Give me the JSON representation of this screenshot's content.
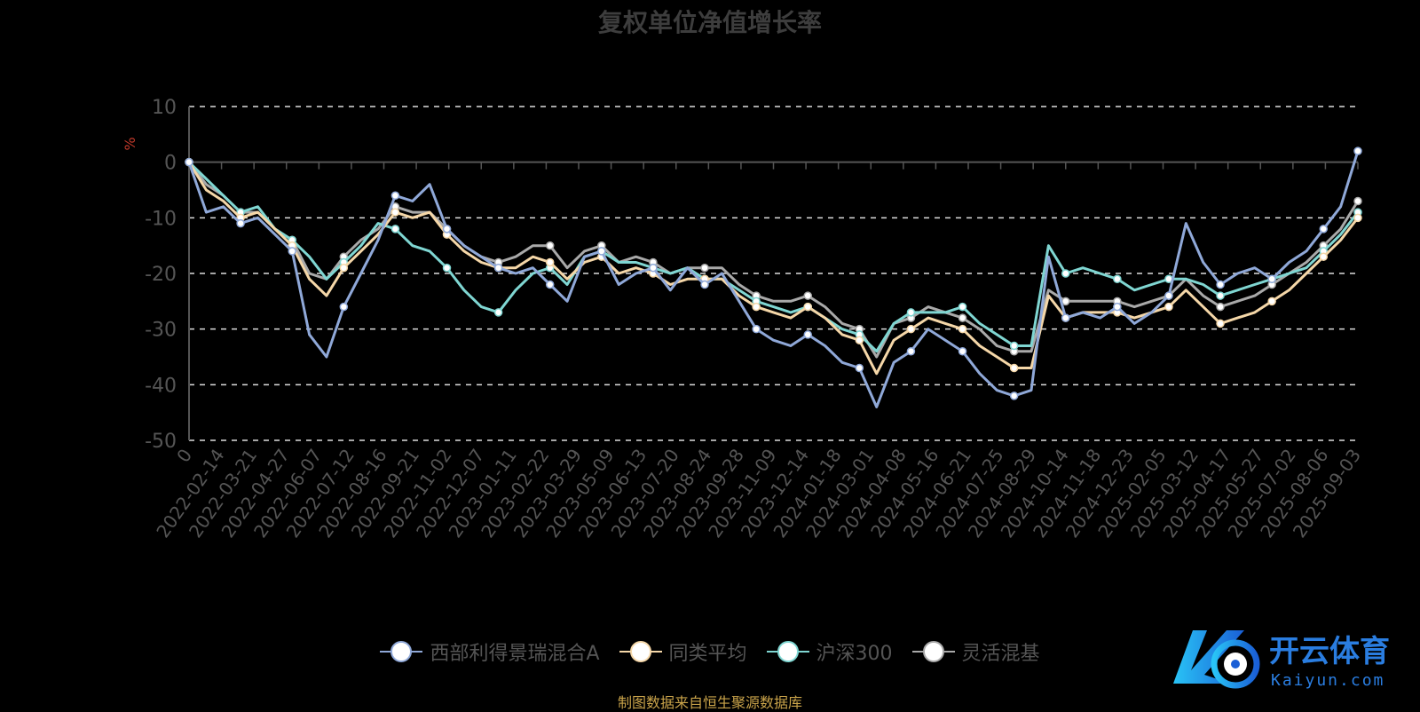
{
  "chart_data": {
    "type": "line",
    "title": "复权单位净值增长率",
    "ylabel": "%",
    "ylim": [
      -50,
      10
    ],
    "yticks": [
      10,
      0,
      -10,
      -20,
      -30,
      -40,
      -50
    ],
    "x_tick_labels": [
      "0",
      "2022-02-14",
      "2022-03-21",
      "2022-04-27",
      "2022-06-07",
      "2022-07-12",
      "2022-08-16",
      "2022-09-21",
      "2022-11-02",
      "2022-12-07",
      "2023-01-11",
      "2023-02-22",
      "2023-03-29",
      "2023-05-09",
      "2023-06-13",
      "2023-07-20",
      "2023-08-24",
      "2023-09-28",
      "2023-11-09",
      "2023-12-14",
      "2024-01-18",
      "2024-03-01",
      "2024-04-08",
      "2024-05-16",
      "2024-06-21",
      "2024-07-25",
      "2024-08-29",
      "2024-10-14",
      "2024-11-18",
      "2024-12-23",
      "2025-02-05",
      "2025-03-12",
      "2025-04-17",
      "2025-05-27",
      "2025-07-02",
      "2025-08-06",
      "2025-09-03"
    ],
    "grid": "dashed-horizontal",
    "legend_position": "bottom",
    "series": [
      {
        "name": "西部利得景瑞混合A",
        "color": "#8fa8d8",
        "values": [
          0,
          -9,
          -8,
          -11,
          -10,
          -13,
          -16,
          -31,
          -35,
          -26,
          -20,
          -14,
          -6,
          -7,
          -4,
          -12,
          -15,
          -17,
          -19,
          -20,
          -19,
          -22,
          -25,
          -17,
          -16,
          -22,
          -20,
          -19,
          -23,
          -19,
          -22,
          -20,
          -25,
          -30,
          -32,
          -33,
          -31,
          -33,
          -36,
          -37,
          -44,
          -36,
          -34,
          -30,
          -32,
          -34,
          -38,
          -41,
          -42,
          -41,
          -17,
          -28,
          -27,
          -28,
          -26,
          -29,
          -27,
          -24,
          -11,
          -18,
          -22,
          -20,
          -19,
          -21,
          -18,
          -16,
          -12,
          -8,
          2
        ]
      },
      {
        "name": "同类平均",
        "color": "#f5d7a8",
        "values": [
          0,
          -5,
          -7,
          -10,
          -9,
          -12,
          -15,
          -21,
          -24,
          -19,
          -16,
          -13,
          -9,
          -10,
          -9,
          -13,
          -16,
          -18,
          -19,
          -19,
          -17,
          -18,
          -21,
          -18,
          -17,
          -20,
          -19,
          -20,
          -22,
          -21,
          -21,
          -21,
          -24,
          -26,
          -27,
          -28,
          -26,
          -28,
          -31,
          -32,
          -38,
          -32,
          -30,
          -28,
          -29,
          -30,
          -33,
          -35,
          -37,
          -37,
          -24,
          -28,
          -27,
          -27,
          -27,
          -28,
          -27,
          -26,
          -23,
          -26,
          -29,
          -28,
          -27,
          -25,
          -23,
          -20,
          -17,
          -14,
          -10
        ]
      },
      {
        "name": "沪深300",
        "color": "#7fd6d2",
        "values": [
          0,
          -3,
          -6,
          -9,
          -8,
          -12,
          -14,
          -17,
          -21,
          -18,
          -15,
          -11,
          -12,
          -15,
          -16,
          -19,
          -23,
          -26,
          -27,
          -23,
          -20,
          -19,
          -22,
          -17,
          -16,
          -18,
          -18,
          -19,
          -20,
          -19,
          -21,
          -21,
          -23,
          -25,
          -26,
          -27,
          -26,
          -28,
          -30,
          -31,
          -34,
          -29,
          -27,
          -27,
          -27,
          -26,
          -29,
          -31,
          -33,
          -33,
          -15,
          -20,
          -19,
          -20,
          -21,
          -23,
          -22,
          -21,
          -21,
          -22,
          -24,
          -23,
          -22,
          -21,
          -20,
          -19,
          -16,
          -13,
          -9
        ]
      },
      {
        "name": "灵活混基",
        "color": "#a9a9a9",
        "values": [
          0,
          -4,
          -6,
          -9,
          -9,
          -12,
          -14,
          -20,
          -21,
          -17,
          -14,
          -12,
          -8,
          -9,
          -9,
          -12,
          -15,
          -17,
          -18,
          -17,
          -15,
          -15,
          -19,
          -16,
          -15,
          -18,
          -17,
          -18,
          -20,
          -19,
          -19,
          -19,
          -22,
          -24,
          -25,
          -25,
          -24,
          -26,
          -29,
          -30,
          -35,
          -29,
          -28,
          -26,
          -27,
          -28,
          -30,
          -33,
          -34,
          -34,
          -23,
          -25,
          -25,
          -25,
          -25,
          -26,
          -25,
          -24,
          -21,
          -24,
          -26,
          -25,
          -24,
          -22,
          -20,
          -18,
          -15,
          -12,
          -7
        ]
      }
    ]
  },
  "source_note": "制图数据来自恒生聚源数据库",
  "logo": {
    "text": "开云体育",
    "sub": "Kaiyun.com"
  }
}
